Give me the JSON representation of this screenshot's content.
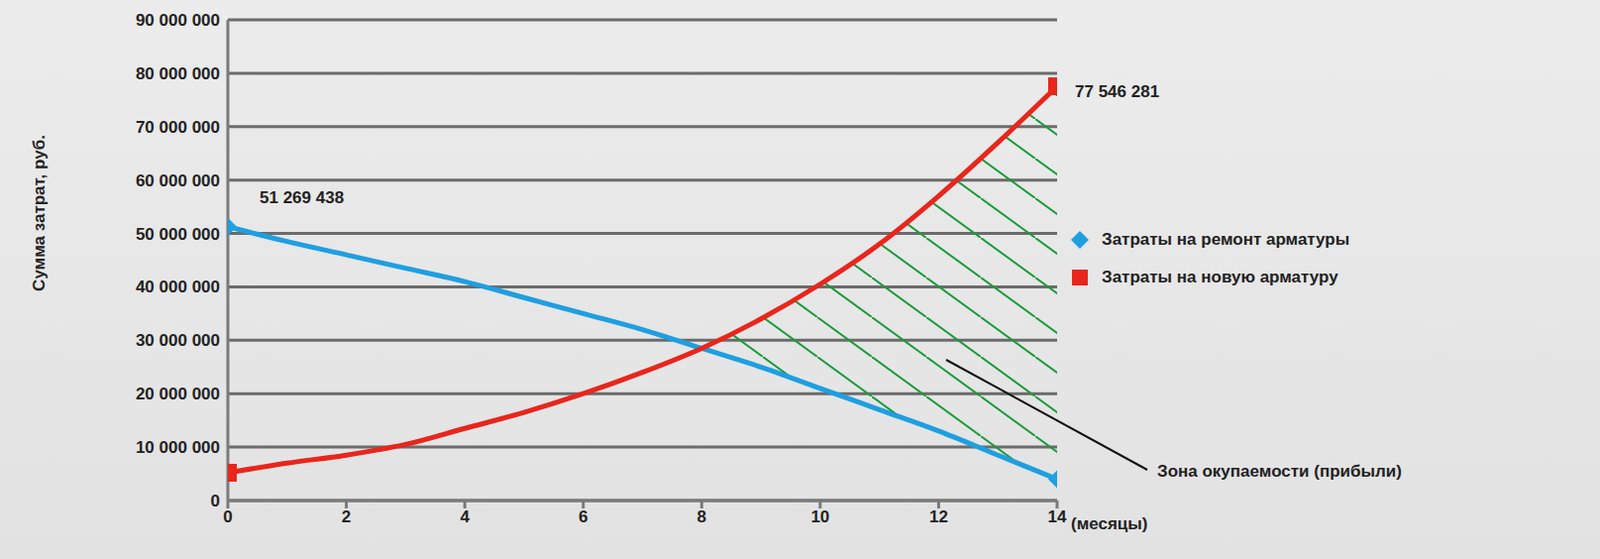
{
  "chart_data": {
    "type": "line",
    "x_label": "(месяцы)",
    "y_label": "Сумма затрат, руб.",
    "annotations": [
      "Зона окупаемости (прибыли)"
    ],
    "x": [
      0,
      1,
      2,
      3,
      4,
      5,
      6,
      7,
      8,
      9,
      10,
      11,
      12,
      13,
      14
    ],
    "xlim": [
      0,
      14
    ],
    "xticks": [
      0,
      2,
      4,
      6,
      8,
      10,
      12,
      14
    ],
    "ylim": [
      0,
      90000000
    ],
    "yticks": [
      0,
      {
        "value": 10000000,
        "label": "10 000 000"
      },
      {
        "value": 20000000,
        "label": "20 000 000"
      },
      {
        "value": 30000000,
        "label": "30 000 000"
      },
      {
        "value": 40000000,
        "label": "40 000 000"
      },
      {
        "value": 50000000,
        "label": "50 000 000"
      },
      {
        "value": 60000000,
        "label": "60 000 000"
      },
      {
        "value": 70000000,
        "label": "70 000 000"
      },
      {
        "value": 80000000,
        "label": "80 000 000"
      },
      {
        "value": 90000000,
        "label": "90 000 000"
      }
    ],
    "grid": true,
    "legend": "right",
    "data_labels": true,
    "series": [
      {
        "name": "Затраты на ремонт арматуры",
        "color": "#1e9fe0",
        "marker": "diamond",
        "values": [
          51269438,
          48500000,
          46000000,
          43500000,
          41000000,
          38000000,
          35000000,
          32000000,
          28500000,
          25000000,
          21000000,
          17000000,
          13000000,
          8500000,
          4000000
        ],
        "value_labels": [
          "51 269 438",
          null,
          null,
          null,
          null,
          null,
          null,
          null,
          null,
          null,
          null,
          null,
          null,
          null,
          null
        ]
      },
      {
        "name": "Затраты на новую арматуру",
        "color": "#e8261c",
        "marker": "square",
        "values": [
          5200000,
          7000000,
          8500000,
          10500000,
          13500000,
          16500000,
          20000000,
          24000000,
          28500000,
          34000000,
          40500000,
          48000000,
          57000000,
          67000000,
          77546281
        ],
        "value_labels": [
          null,
          null,
          null,
          null,
          null,
          null,
          null,
          null,
          null,
          null,
          null,
          null,
          null,
          null,
          "77 546 281"
        ]
      }
    ]
  }
}
